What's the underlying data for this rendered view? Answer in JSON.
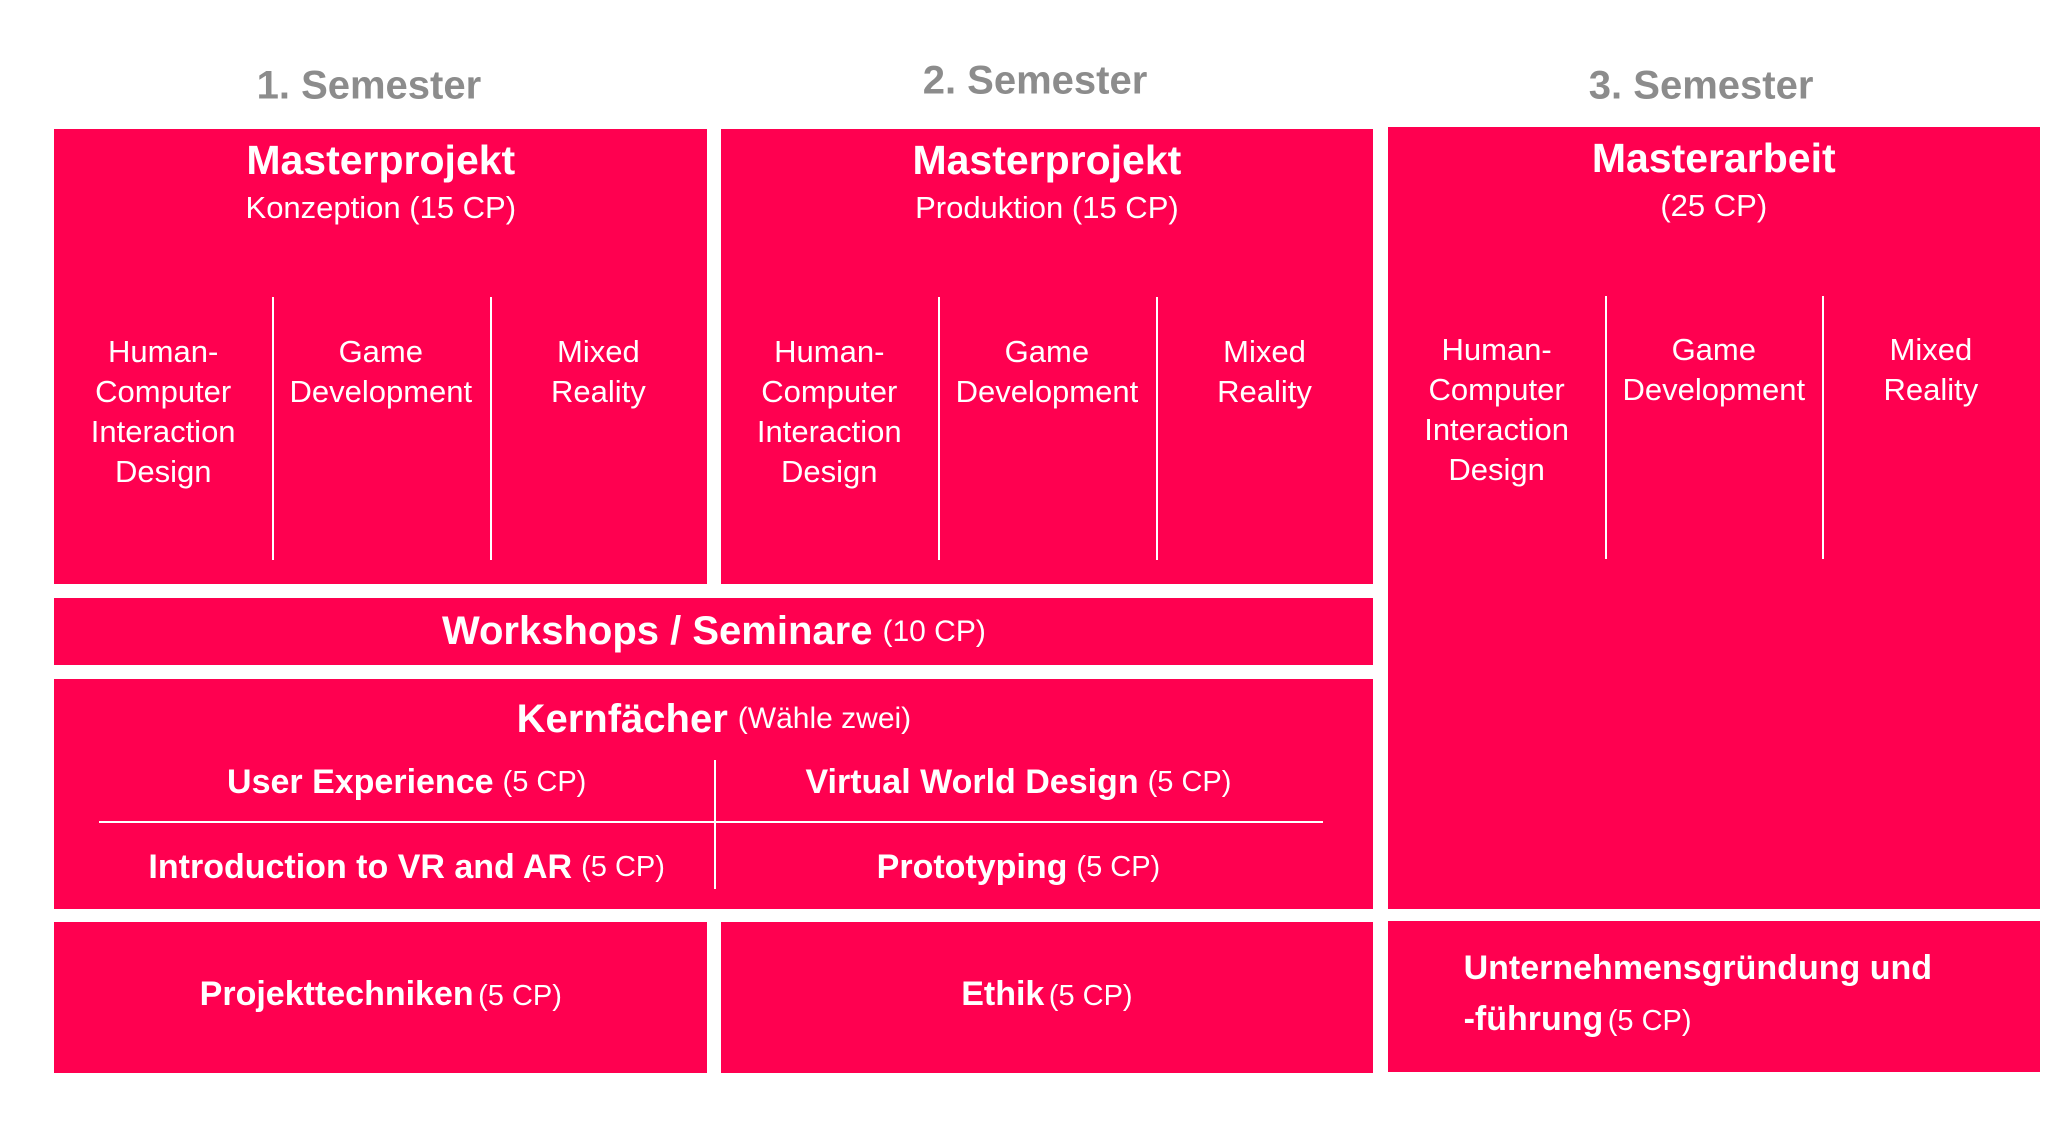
{
  "headers": [
    "1. Semester",
    "2. Semester",
    "3. Semester"
  ],
  "projects": [
    {
      "title": "Masterprojekt",
      "subtitle": "Konzeption (15 CP)",
      "tracks": [
        [
          "Human-",
          "Computer",
          "Interaction",
          "Design"
        ],
        [
          "Game",
          "Development"
        ],
        [
          "Mixed",
          "Reality"
        ]
      ]
    },
    {
      "title": "Masterprojekt",
      "subtitle": "Produktion (15 CP)",
      "tracks": [
        [
          "Human-",
          "Computer",
          "Interaction",
          "Design"
        ],
        [
          "Game",
          "Development"
        ],
        [
          "Mixed",
          "Reality"
        ]
      ]
    },
    {
      "title": "Masterarbeit",
      "subtitle": "(25 CP)",
      "tracks": [
        [
          "Human-",
          "Computer",
          "Interaction",
          "Design"
        ],
        [
          "Game",
          "Development"
        ],
        [
          "Mixed",
          "Reality"
        ]
      ]
    }
  ],
  "workshops": {
    "title": "Workshops / Seminare",
    "credits": "(10 CP)"
  },
  "core": {
    "title": "Kernfächer",
    "note": "(Wähle zwei)",
    "courses": [
      {
        "name": "User Experience",
        "credits": "(5 CP)"
      },
      {
        "name": "Virtual World Design",
        "credits": "(5 CP)"
      },
      {
        "name": "Introduction to VR and AR",
        "credits": "(5 CP)"
      },
      {
        "name": "Prototyping",
        "credits": "(5 CP)"
      }
    ]
  },
  "electives": [
    {
      "name": [
        "Projekttechniken"
      ],
      "credits": "(5 CP)"
    },
    {
      "name": [
        "Ethik"
      ],
      "credits": "(5 CP)"
    },
    {
      "name": [
        "Unternehmensgründung und",
        "-führung"
      ],
      "credits": "(5 CP)"
    }
  ]
}
